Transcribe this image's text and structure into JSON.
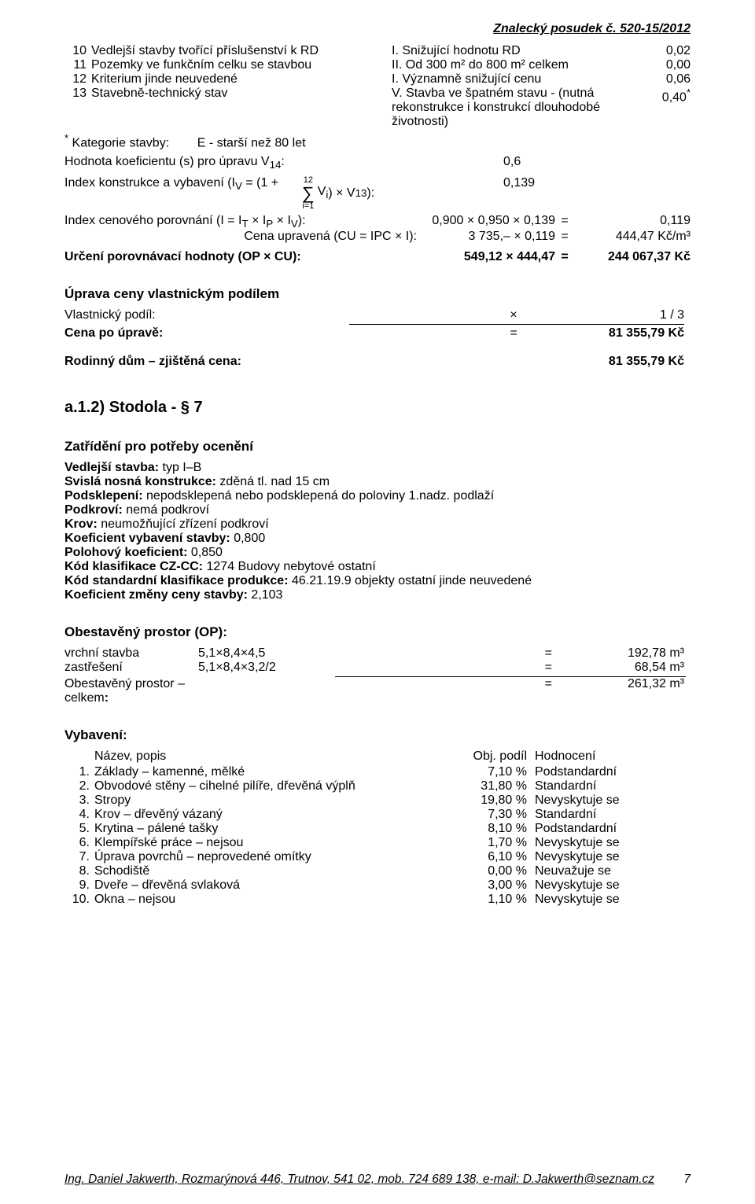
{
  "header": "Znalecký posudek č. 520-15/2012",
  "rows": [
    {
      "n": "10",
      "desc": "Vedlejší stavby tvořící příslušenství k RD",
      "mid": "I. Snižující hodnotu RD",
      "val": "0,02"
    },
    {
      "n": "11",
      "desc": "Pozemky ve funkčním celku se stavbou",
      "mid": "II. Od 300 m² do 800 m² celkem",
      "val": "0,00"
    },
    {
      "n": "12",
      "desc": "Kriterium jinde neuvedené",
      "mid": "I. Významně snižující cenu",
      "val": "0,06"
    },
    {
      "n": "13",
      "desc": "Stavebně-technický stav",
      "mid": "V. Stavba ve špatném stavu - (nutná rekonstrukce i konstrukcí dlouhodobé životnosti)",
      "val": "0,40",
      "star": true
    }
  ],
  "kat_line_lead": "Kategorie stavby:",
  "kat_line_tail": "E - starší než 80 let",
  "koef_line": "Hodnota koeficientu (s) pro úpravu V",
  "koef_sub": "14",
  "koef_colon": ":",
  "koef_val": "0,6",
  "idx_label": "Index konstrukce a vybavení  (I",
  "idx_v": "V",
  "idx_mid": " = (1 + ",
  "idx_close": ") × V",
  "idx_13": "13",
  "idx_close2": "):",
  "idx_val": "0,139",
  "sigma_top": "12",
  "sigma_bot": "i=1",
  "sigma_vi": "V",
  "sigma_vi_sub": "i",
  "calc": [
    {
      "a": "Index cenového porovnání (I = I",
      "suffix": "):",
      "a_sub": [
        "T",
        "P",
        "V"
      ],
      "b": "0,900 × 0,950 × 0,139",
      "eq": "=",
      "c": "0,119"
    },
    {
      "a": "Cena upravená (CU = IPC × I):",
      "a_sub": null,
      "b": "3 735,– × 0,119",
      "eq": "=",
      "c": "444,47 Kč/m³"
    }
  ],
  "urc": {
    "a": "Určení porovnávací hodnoty (OP × CU):",
    "b": "549,12 × 444,47",
    "eq": "=",
    "c": "244 067,37 Kč"
  },
  "uprava_h": "Úprava ceny vlastnickým podílem",
  "vlast": {
    "l": "Vlastnický podíl:",
    "x": "×",
    "r": "1 / 3"
  },
  "cena_po": {
    "l": "Cena po úpravě:",
    "x": "=",
    "r": "81 355,79 Kč"
  },
  "zj": {
    "l": "Rodinný dům – zjištěná cena:",
    "r": "81 355,79 Kč"
  },
  "stodola_h": "a.1.2) Stodola - § 7",
  "zatr_h": "Zatřídění pro potřeby ocenění",
  "zatr": [
    {
      "b": "Vedlejší stavba:",
      "t": " typ I–B"
    },
    {
      "b": "Svislá nosná konstrukce:",
      "t": " zděná tl. nad 15 cm"
    },
    {
      "b": "Podsklepení:",
      "t": " nepodsklepená nebo podsklepená do poloviny 1.nadz. podlaží"
    },
    {
      "b": "Podkroví:",
      "t": " nemá podkroví"
    },
    {
      "b": "Krov:",
      "t": " neumožňující zřízení podkroví"
    },
    {
      "b": "Koeficient vybavení stavby:",
      "t": " 0,800"
    },
    {
      "b": "Polohový koeficient:",
      "t": " 0,850"
    },
    {
      "b": "Kód klasifikace CZ-CC:",
      "t": " 1274 Budovy nebytové ostatní"
    },
    {
      "b": "Kód standardní klasifikace produkce:",
      "t": " 46.21.19.9    objekty ostatní jinde neuvedené"
    },
    {
      "b": "Koeficient   změny ceny stavby:",
      "t": " 2,103"
    }
  ],
  "obest_h": "Obestavěný prostor (OP):",
  "ob": [
    {
      "a": "vrchní stavba",
      "b": "5,1×8,4×4,5",
      "eq": "=",
      "c": "192,78 m³"
    },
    {
      "a": "zastřešení",
      "b": "5,1×8,4×3,2/2",
      "eq": "=",
      "c": "68,54 m³"
    }
  ],
  "ob_tot": {
    "a": "Obestavěný prostor – celkem",
    "b": ":",
    "eq": "=",
    "c": "261,32 m³"
  },
  "vyb_h": "Vybavení:",
  "vyb_hdr": {
    "t": "Název, popis",
    "p": "Obj. podíl",
    "h": "Hodnocení"
  },
  "vyb": [
    {
      "n": "1.",
      "t": "Základy – kamenné, mělké",
      "p": "7,10 %",
      "h": "Podstandardní"
    },
    {
      "n": "2.",
      "t": "Obvodové stěny – cihelné pilíře, dřevěná výplň",
      "p": "31,80 %",
      "h": "Standardní"
    },
    {
      "n": "3.",
      "t": "Stropy",
      "p": "19,80 %",
      "h": "Nevyskytuje se"
    },
    {
      "n": "4.",
      "t": "Krov – dřevěný vázaný",
      "p": "7,30 %",
      "h": "Standardní"
    },
    {
      "n": "5.",
      "t": "Krytina – pálené tašky",
      "p": "8,10 %",
      "h": "Podstandardní"
    },
    {
      "n": "6.",
      "t": "Klempířské práce – nejsou",
      "p": "1,70 %",
      "h": "Nevyskytuje se"
    },
    {
      "n": "7.",
      "t": "Úprava povrchů – neprovedené omítky",
      "p": "6,10 %",
      "h": "Nevyskytuje se"
    },
    {
      "n": "8.",
      "t": "Schodiště",
      "p": "0,00 %",
      "h": "Neuvažuje se"
    },
    {
      "n": "9.",
      "t": "Dveře – dřevěná svlaková",
      "p": "3,00 %",
      "h": "Nevyskytuje se"
    },
    {
      "n": "10.",
      "t": "Okna – nejsou",
      "p": "1,10 %",
      "h": "Nevyskytuje se"
    }
  ],
  "footer": {
    "txt": "Ing. Daniel Jakwerth, Rozmarýnová 446, Trutnov, 541 02, mob. 724 689 138, e-mail: D.Jakwerth@seznam.cz",
    "page": "7"
  }
}
